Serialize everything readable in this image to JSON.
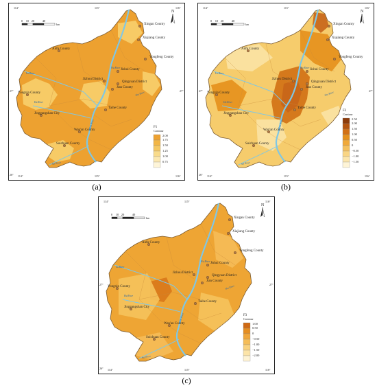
{
  "panels": [
    {
      "id": "a",
      "label": "(a)",
      "legend": {
        "title": "F1",
        "subtitle": "Contour",
        "items": [
          {
            "label": "2.00",
            "color": "#eda130"
          },
          {
            "label": "1.75",
            "color": "#f2b646"
          },
          {
            "label": "1.50",
            "color": "#f5c862"
          },
          {
            "label": "1.25",
            "color": "#f9db8a"
          },
          {
            "label": "1.00",
            "color": "#fce8b0"
          },
          {
            "label": "0.75",
            "color": "#fef5d8"
          }
        ]
      },
      "fill_main": "#eda130",
      "fill_light": "#f7cf6d",
      "fill_dark": "#e69424"
    },
    {
      "id": "b",
      "label": "(b)",
      "legend": {
        "title": "F2",
        "subtitle": "Contour",
        "items": [
          {
            "label": "2.50",
            "color": "#8c3c0c"
          },
          {
            "label": "2.00",
            "color": "#b35410"
          },
          {
            "label": "1.50",
            "color": "#d27014"
          },
          {
            "label": "1.00",
            "color": "#e5901c"
          },
          {
            "label": "0.50",
            "color": "#f0a93a"
          },
          {
            "label": "0",
            "color": "#f5c15e"
          },
          {
            "label": "−0.50",
            "color": "#f9d584"
          },
          {
            "label": "−1.00",
            "color": "#fce6ad"
          },
          {
            "label": "−1.50",
            "color": "#fef4d6"
          }
        ]
      },
      "fill_main": "#f6cc6c",
      "fill_light": "#fbe3a5",
      "fill_dark": "#c8651a"
    },
    {
      "id": "c",
      "label": "(c)",
      "legend": {
        "title": "F3",
        "subtitle": "Contour",
        "items": [
          {
            "label": "1.00",
            "color": "#cf6a14"
          },
          {
            "label": "0.50",
            "color": "#e58e22"
          },
          {
            "label": "0",
            "color": "#f0a63a"
          },
          {
            "label": "−0.50",
            "color": "#f5bd58"
          },
          {
            "label": "−1.00",
            "color": "#f9d27e"
          },
          {
            "label": "−1.50",
            "color": "#fce4a8"
          },
          {
            "label": "−2.00",
            "color": "#fef3d4"
          }
        ]
      },
      "fill_main": "#eea534",
      "fill_light": "#f5c35c",
      "fill_dark": "#d8781a"
    }
  ],
  "coords": {
    "top_left": "114°",
    "top_mid": "115°",
    "top_right": "116°",
    "left_lat": "27°",
    "right_lat": "27°",
    "bottom_left_lat": "26°",
    "bottom_left": "114°",
    "bottom_mid": "115°",
    "bottom_right": "116°"
  },
  "scale": {
    "ticks": [
      "0",
      "10",
      "20",
      "40"
    ],
    "unit": "km"
  },
  "north": "N",
  "places": [
    {
      "name": "Xingan County"
    },
    {
      "name": "Xiajiang County"
    },
    {
      "name": "Yongfeng County"
    },
    {
      "name": "Anfu County"
    },
    {
      "name": "Jishui County"
    },
    {
      "name": "Jizhou District"
    },
    {
      "name": "Qingyuan District"
    },
    {
      "name": "Jian County"
    },
    {
      "name": "Yongxin County"
    },
    {
      "name": "Taihe County"
    },
    {
      "name": "Jinggangshan City"
    },
    {
      "name": "Wan'an County"
    },
    {
      "name": "Suichuan County"
    }
  ],
  "rivers": [
    "Gan River",
    "Lu River",
    "Wu River",
    "Hu River",
    "Shu River",
    "Sui River"
  ]
}
